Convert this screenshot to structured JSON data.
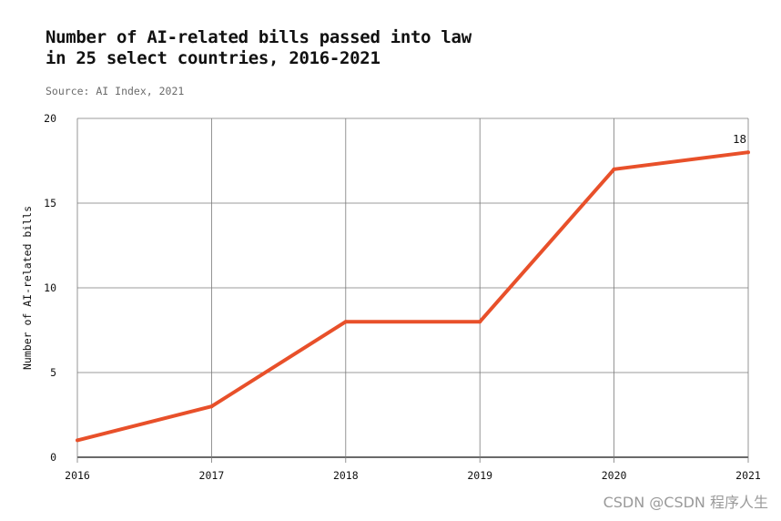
{
  "chart_data": {
    "type": "line",
    "title_lines": [
      "Number of AI-related bills passed into law",
      "in 25 select countries, 2016-2021"
    ],
    "source": "Source: AI Index, 2021",
    "ylabel": "Number of AI-related bills",
    "xlabel": "",
    "x": [
      "2016",
      "2017",
      "2018",
      "2019",
      "2020",
      "2021"
    ],
    "series": [
      {
        "values": [
          1,
          3,
          8,
          8,
          17,
          18
        ],
        "color": "#e8502a"
      }
    ],
    "ylim": [
      0,
      20
    ],
    "yticks": [
      0,
      5,
      10,
      15,
      20
    ],
    "grid": true,
    "annotations": [
      {
        "x": "2021",
        "y": 18,
        "text": "18"
      }
    ]
  },
  "watermark": "CSDN @CSDN 程序人生"
}
